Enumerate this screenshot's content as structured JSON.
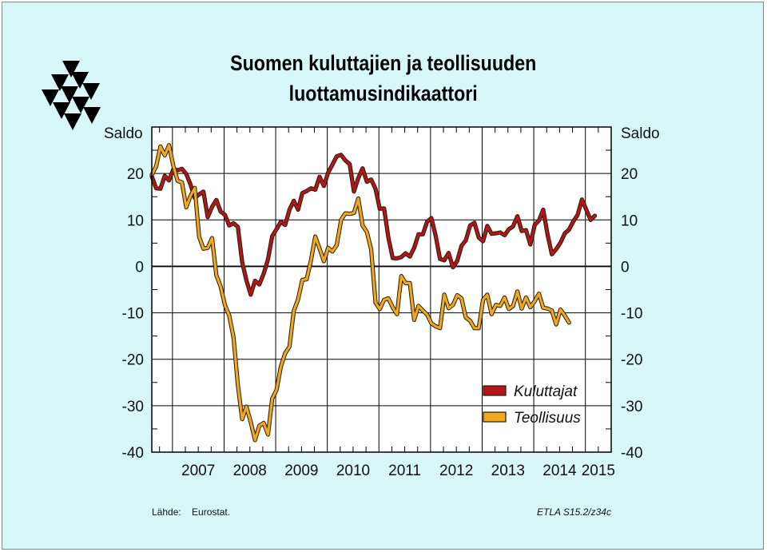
{
  "header": {
    "title_line1": "Suomen kuluttajien ja teollisuuden",
    "title_line2": "luottamusindikaattori"
  },
  "footer": {
    "source_label": "Lähde:",
    "source_value": "Eurostat.",
    "code": "ETLA S15.2/z34c"
  },
  "chart_data": {
    "type": "line",
    "ylabel_left": "Saldo",
    "ylabel_right": "Saldo",
    "ylim": [
      -40,
      30
    ],
    "yticks": [
      20,
      10,
      0,
      -10,
      -20,
      -30,
      -40
    ],
    "xlim": [
      2006.6,
      2015.5
    ],
    "xticks": [
      "2007",
      "2008",
      "2009",
      "2010",
      "2011",
      "2012",
      "2013",
      "2014",
      "2015"
    ],
    "grid": true,
    "legend_position": "bottom-right",
    "colors": {
      "Kuluttajat": "#b0161c",
      "Teollisuus": "#f0a81c",
      "background": "#d8f7f8",
      "plot": "#ffffff"
    },
    "series": [
      {
        "name": "Kuluttajat",
        "start": 2006.6,
        "step": 0.0833333,
        "values": [
          19.4,
          16.8,
          16.7,
          19.5,
          18.5,
          20.9,
          20.7,
          21.0,
          19.9,
          17.6,
          14.7,
          15.5,
          16.1,
          10.6,
          12.8,
          14.3,
          11.8,
          11.1,
          8.8,
          9.3,
          8.5,
          0.9,
          -3.0,
          -6.1,
          -3.1,
          -3.9,
          -1.6,
          1.5,
          6.5,
          8.0,
          9.6,
          8.9,
          12.2,
          14.1,
          12.2,
          15.8,
          16.2,
          16.8,
          16.5,
          19.3,
          17.3,
          20.2,
          21.9,
          23.7,
          24.0,
          22.8,
          22.0,
          16.1,
          19.0,
          21.1,
          18.2,
          18.7,
          16.7,
          12.4,
          12.5,
          6.2,
          1.8,
          1.7,
          2.0,
          2.8,
          2.1,
          4.0,
          6.9,
          6.9,
          9.6,
          10.4,
          6.6,
          1.6,
          1.3,
          2.9,
          -0.2,
          1.2,
          4.4,
          5.6,
          8.8,
          9.4,
          6.2,
          5.4,
          8.7,
          7.0,
          7.1,
          7.3,
          6.7,
          8.0,
          8.6,
          10.8,
          7.6,
          7.8,
          4.7,
          8.9,
          9.9,
          12.2,
          6.9,
          2.6,
          3.7,
          5.1,
          7.1,
          7.9,
          9.7,
          11.1,
          14.4,
          12.2,
          10.0,
          10.9
        ]
      },
      {
        "name": "Teollisuus",
        "start": 2006.6,
        "step": 0.0833333,
        "values": [
          19.7,
          21.5,
          25.8,
          23.9,
          26.1,
          21.7,
          18.4,
          18.1,
          12.7,
          15.2,
          16.9,
          6.4,
          3.8,
          4.0,
          6.1,
          -1.9,
          -4.3,
          -8.3,
          -10.6,
          -15.3,
          -25.5,
          -32.9,
          -30.2,
          -33.5,
          -37.4,
          -34.3,
          -33.7,
          -36.2,
          -28.5,
          -26.6,
          -21.6,
          -18.7,
          -17.3,
          -9.6,
          -7.1,
          -2.9,
          -2.8,
          1.3,
          6.4,
          3.8,
          1.1,
          4.0,
          3.2,
          4.6,
          10.0,
          11.4,
          11.3,
          11.5,
          14.6,
          8.8,
          7.4,
          3.6,
          -7.8,
          -9.2,
          -7.2,
          -6.9,
          -8.8,
          -10.3,
          -2.1,
          -3.6,
          -3.6,
          -11.5,
          -8.5,
          -9.5,
          -10.4,
          -12.3,
          -12.9,
          -13.3,
          -6.1,
          -9.0,
          -8.3,
          -6.2,
          -6.9,
          -11.0,
          -11.7,
          -13.3,
          -13.3,
          -7.2,
          -6.1,
          -10.3,
          -8.3,
          -8.5,
          -6.7,
          -9.2,
          -8.5,
          -5.4,
          -9.1,
          -6.7,
          -8.8,
          -7.5,
          -5.9,
          -8.9,
          -9.1,
          -9.5,
          -12.5,
          -9.3,
          -10.6,
          -12.1
        ]
      }
    ]
  }
}
